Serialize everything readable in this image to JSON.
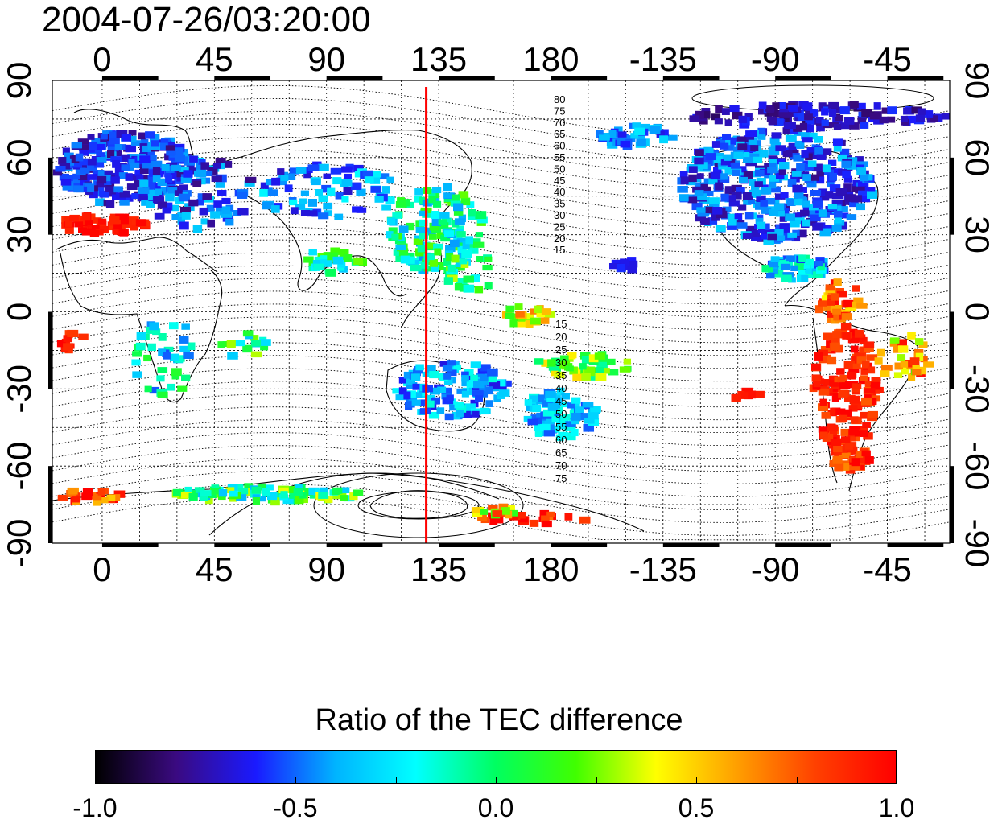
{
  "title": "2004-07-26/03:20:00",
  "axes": {
    "lon_ticks_top": [
      "0",
      "45",
      "90",
      "135",
      "180",
      "-135",
      "-90",
      "-45"
    ],
    "lon_ticks_bottom": [
      "0",
      "45",
      "90",
      "135",
      "180",
      "-135",
      "-90",
      "-45"
    ],
    "lat_ticks_left": [
      "90",
      "60",
      "30",
      "0",
      "-30",
      "-60",
      "-90"
    ],
    "lat_ticks_right": [
      "90",
      "60",
      "30",
      "0",
      "-30",
      "-60",
      "-90"
    ]
  },
  "contour_labels_north": [
    "80",
    "75",
    "70",
    "65",
    "60",
    "55",
    "50",
    "45",
    "40",
    "35",
    "30",
    "25",
    "20",
    "15"
  ],
  "contour_labels_south": [
    "15",
    "20",
    "25",
    "30",
    "35",
    "40",
    "45",
    "50",
    "55",
    "60",
    "65",
    "70",
    "75"
  ],
  "marker_line": {
    "longitude": 130,
    "color": "#ff0000"
  },
  "colorbar": {
    "title": "Ratio of the TEC difference",
    "min": -1.0,
    "max": 1.0,
    "tick_labels": [
      "-1.0",
      "-0.5",
      "0.0",
      "0.5",
      "1.0"
    ],
    "colors": [
      "#000000",
      "#3a0a80",
      "#1a1aff",
      "#00b4ff",
      "#00ffff",
      "#00ff60",
      "#40ff00",
      "#ffff00",
      "#ffa000",
      "#ff4000",
      "#ff0000"
    ]
  },
  "chart_data": {
    "type": "heatmap",
    "projection": "equirectangular",
    "x_range": [
      -20,
      340
    ],
    "y_range": [
      -90,
      90
    ],
    "title": "2004-07-26/03:20:00",
    "colorbar_label": "Ratio of the TEC difference"
  }
}
